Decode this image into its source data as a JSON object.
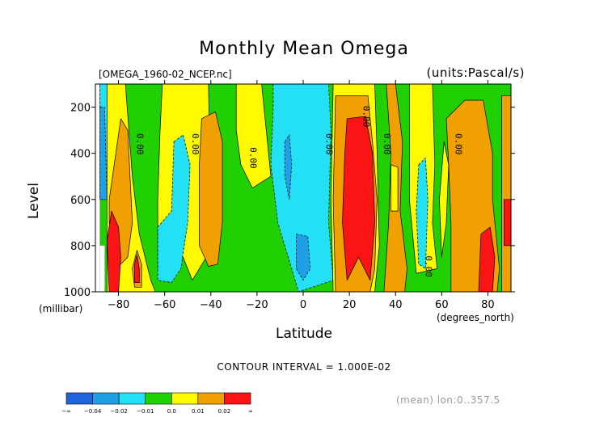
{
  "header": {
    "title": "Monthly Mean Omega",
    "file": "[OMEGA_1960-02_NCEP.nc]",
    "units": "(units:Pascal/s)"
  },
  "footer": {
    "contour_interval": "CONTOUR INTERVAL = 1.000E-02",
    "mean_info": "(mean) lon:0..357.5"
  },
  "chart_data": {
    "type": "heatmap",
    "title": "Monthly Mean Omega",
    "xlabel": "Latitude",
    "xunits": "(degrees_north)",
    "ylabel": "Level",
    "yunits": "(millibar)",
    "xlim": [
      -90,
      90
    ],
    "ylim": [
      1000,
      100
    ],
    "y_inverted": true,
    "xticks": [
      -80,
      -60,
      -40,
      -20,
      0,
      20,
      40,
      60,
      80
    ],
    "xtick_labels": [
      "−80",
      "−60",
      "−40",
      "−20",
      "0",
      "20",
      "40",
      "60",
      "80"
    ],
    "yticks": [
      200,
      400,
      600,
      800,
      1000
    ],
    "ytick_labels": [
      "200",
      "400",
      "600",
      "800",
      "1000"
    ],
    "contour_labels": [
      {
        "text": "0.00",
        "lat": -72,
        "lev": 360
      },
      {
        "text": "0.00",
        "lat": -48,
        "lev": 360
      },
      {
        "text": "0.00",
        "lat": -23,
        "lev": 420
      },
      {
        "text": "0.00",
        "lat": 10,
        "lev": 360
      },
      {
        "text": "0.00",
        "lat": 26,
        "lev": 240
      },
      {
        "text": "0.00",
        "lat": 35,
        "lev": 360
      },
      {
        "text": "0.00",
        "lat": 53,
        "lev": 890
      },
      {
        "text": "0.00",
        "lat": 66,
        "lev": 360
      }
    ],
    "colorbar": {
      "colors": [
        "#1e64dc",
        "#1fa0e6",
        "#23e0f5",
        "#20d000",
        "#fffa00",
        "#f0a000",
        "#fa1414"
      ],
      "tick_labels": [
        "−∞",
        "−0.04",
        "−0.02",
        "−0.01",
        "0.0",
        "0.01",
        "0.02",
        "∞"
      ]
    },
    "regions": [
      {
        "bin": 3,
        "points": [
          [
            -88,
            100
          ],
          [
            90,
            100
          ],
          [
            90,
            1000
          ],
          [
            -88,
            1000
          ]
        ]
      },
      {
        "bin": 2,
        "points": [
          [
            -88,
            100
          ],
          [
            -84,
            100
          ],
          [
            -82,
            600
          ],
          [
            -86,
            600
          ],
          [
            -88,
            600
          ]
        ]
      },
      {
        "bin": 1,
        "points": [
          [
            -88,
            200
          ],
          [
            -86,
            200
          ],
          [
            -85,
            600
          ],
          [
            -88,
            600
          ]
        ]
      },
      {
        "bin": 4,
        "points": [
          [
            -85,
            100
          ],
          [
            -77,
            100
          ],
          [
            -74,
            500
          ],
          [
            -71,
            750
          ],
          [
            -66,
            950
          ],
          [
            -64,
            1000
          ],
          [
            -85,
            1000
          ]
        ]
      },
      {
        "bin": 5,
        "points": [
          [
            -79,
            250
          ],
          [
            -76,
            300
          ],
          [
            -75,
            500
          ],
          [
            -74,
            700
          ],
          [
            -76,
            850
          ],
          [
            -81,
            900
          ],
          [
            -84,
            700
          ],
          [
            -84,
            600
          ]
        ]
      },
      {
        "bin": 6,
        "points": [
          [
            -83,
            650
          ],
          [
            -80,
            720
          ],
          [
            -79,
            850
          ],
          [
            -80,
            1000
          ],
          [
            -84,
            1000
          ],
          [
            -85,
            780
          ]
        ]
      },
      {
        "bin": 5,
        "points": [
          [
            -72,
            820
          ],
          [
            -70,
            880
          ],
          [
            -70,
            980
          ],
          [
            -73,
            980
          ],
          [
            -74,
            900
          ]
        ]
      },
      {
        "bin": 6,
        "points": [
          [
            -72,
            840
          ],
          [
            -71,
            900
          ],
          [
            -71,
            960
          ],
          [
            -73,
            960
          ],
          [
            -73,
            880
          ]
        ]
      },
      {
        "bin": 4,
        "points": [
          [
            -61,
            100
          ],
          [
            -41,
            100
          ],
          [
            -40,
            700
          ],
          [
            -42,
            850
          ],
          [
            -48,
            950
          ],
          [
            -52,
            850
          ],
          [
            -58,
            960
          ],
          [
            -63,
            900
          ],
          [
            -63,
            600
          ],
          [
            -62,
            300
          ]
        ]
      },
      {
        "bin": 2,
        "points": [
          [
            -56,
            350
          ],
          [
            -52,
            320
          ],
          [
            -49,
            450
          ],
          [
            -50,
            700
          ],
          [
            -53,
            900
          ],
          [
            -57,
            960
          ],
          [
            -63,
            950
          ],
          [
            -63,
            720
          ],
          [
            -57,
            650
          ]
        ]
      },
      {
        "bin": 5,
        "points": [
          [
            -44,
            250
          ],
          [
            -38,
            220
          ],
          [
            -35,
            350
          ],
          [
            -35,
            700
          ],
          [
            -37,
            880
          ],
          [
            -41,
            890
          ],
          [
            -45,
            800
          ],
          [
            -45,
            450
          ]
        ]
      },
      {
        "bin": 4,
        "points": [
          [
            -29,
            100
          ],
          [
            -18,
            100
          ],
          [
            -16,
            300
          ],
          [
            -14,
            500
          ],
          [
            -22,
            550
          ],
          [
            -27,
            450
          ],
          [
            -29,
            300
          ]
        ]
      },
      {
        "bin": 2,
        "points": [
          [
            -13,
            100
          ],
          [
            11,
            100
          ],
          [
            12,
            300
          ],
          [
            11,
            700
          ],
          [
            13,
            950
          ],
          [
            -2,
            1000
          ],
          [
            -11,
            700
          ],
          [
            -14,
            450
          ],
          [
            -13,
            200
          ]
        ]
      },
      {
        "bin": 1,
        "points": [
          [
            -8,
            350
          ],
          [
            -6,
            320
          ],
          [
            -5,
            450
          ],
          [
            -6,
            600
          ],
          [
            -8,
            500
          ]
        ]
      },
      {
        "bin": 1,
        "points": [
          [
            -3,
            750
          ],
          [
            2,
            760
          ],
          [
            3,
            900
          ],
          [
            0,
            950
          ],
          [
            -3,
            900
          ]
        ]
      },
      {
        "bin": 4,
        "points": [
          [
            13,
            100
          ],
          [
            31,
            100
          ],
          [
            32,
            400
          ],
          [
            33,
            800
          ],
          [
            31,
            1000
          ],
          [
            13,
            1000
          ],
          [
            12,
            600
          ]
        ]
      },
      {
        "bin": 5,
        "points": [
          [
            14,
            150
          ],
          [
            28,
            150
          ],
          [
            30,
            350
          ],
          [
            32,
            600
          ],
          [
            31,
            900
          ],
          [
            29,
            1000
          ],
          [
            14,
            1000
          ],
          [
            13,
            600
          ]
        ]
      },
      {
        "bin": 6,
        "points": [
          [
            19,
            250
          ],
          [
            27,
            240
          ],
          [
            30,
            400
          ],
          [
            31,
            700
          ],
          [
            29,
            950
          ],
          [
            24,
            850
          ],
          [
            19,
            950
          ],
          [
            17,
            700
          ],
          [
            18,
            400
          ]
        ]
      },
      {
        "bin": 4,
        "points": [
          [
            46,
            100
          ],
          [
            56,
            100
          ],
          [
            57,
            450
          ],
          [
            56,
            700
          ],
          [
            58,
            900
          ],
          [
            49,
            920
          ],
          [
            46,
            600
          ]
        ]
      },
      {
        "bin": 2,
        "points": [
          [
            50,
            450
          ],
          [
            53,
            420
          ],
          [
            54,
            600
          ],
          [
            53,
            900
          ],
          [
            50,
            880
          ],
          [
            49,
            650
          ]
        ]
      },
      {
        "bin": 5,
        "points": [
          [
            36,
            100
          ],
          [
            40,
            100
          ],
          [
            43,
            350
          ],
          [
            42,
            650
          ],
          [
            45,
            900
          ],
          [
            44,
            1000
          ],
          [
            35,
            1000
          ],
          [
            37,
            700
          ],
          [
            38,
            400
          ]
        ]
      },
      {
        "bin": 4,
        "points": [
          [
            38,
            450
          ],
          [
            41,
            460
          ],
          [
            41,
            650
          ],
          [
            38,
            650
          ]
        ]
      },
      {
        "bin": 5,
        "points": [
          [
            62,
            250
          ],
          [
            70,
            170
          ],
          [
            78,
            170
          ],
          [
            82,
            400
          ],
          [
            82,
            600
          ],
          [
            85,
            900
          ],
          [
            84,
            1000
          ],
          [
            64,
            1000
          ],
          [
            64,
            700
          ],
          [
            63,
            450
          ]
        ]
      },
      {
        "bin": 4,
        "points": [
          [
            61,
            350
          ],
          [
            63,
            450
          ],
          [
            62,
            700
          ],
          [
            60,
            850
          ],
          [
            59,
            600
          ]
        ]
      },
      {
        "bin": 6,
        "points": [
          [
            77,
            750
          ],
          [
            81,
            720
          ],
          [
            83,
            850
          ],
          [
            82,
            1000
          ],
          [
            76,
            1000
          ]
        ]
      },
      {
        "bin": 5,
        "points": [
          [
            86,
            150
          ],
          [
            90,
            150
          ],
          [
            90,
            1000
          ],
          [
            86,
            1000
          ],
          [
            86,
            500
          ]
        ]
      },
      {
        "bin": 6,
        "points": [
          [
            87,
            600
          ],
          [
            90,
            600
          ],
          [
            90,
            800
          ],
          [
            87,
            800
          ]
        ]
      }
    ],
    "missing_regions": [
      {
        "points": [
          [
            -90,
            600
          ],
          [
            -88,
            600
          ],
          [
            -88,
            1000
          ],
          [
            -90,
            1000
          ]
        ]
      },
      {
        "points": [
          [
            -88,
            800
          ],
          [
            -86,
            800
          ],
          [
            -86,
            1000
          ],
          [
            -88,
            1000
          ]
        ]
      }
    ]
  }
}
